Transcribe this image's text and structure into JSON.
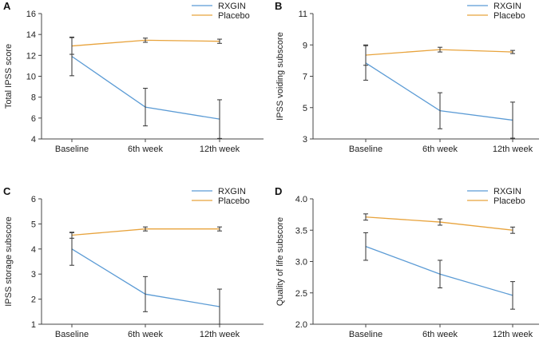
{
  "colors": {
    "rxgin": "#5B9BD5",
    "placebo": "#E8A33C",
    "error": "#333333"
  },
  "chart_data": [
    {
      "panel": "A",
      "type": "line",
      "categories": [
        "Baseline",
        "6th week",
        "12th week"
      ],
      "ylabel": "Total IPSS score",
      "ylim": [
        4,
        16
      ],
      "yticks": [
        4,
        6,
        8,
        10,
        12,
        14,
        16
      ],
      "legend": [
        "RXGIN",
        "Placebo"
      ],
      "series": [
        {
          "name": "RXGIN",
          "values": [
            11.9,
            7.05,
            5.9
          ],
          "errors": [
            1.85,
            1.8,
            1.85
          ]
        },
        {
          "name": "Placebo",
          "values": [
            12.9,
            13.45,
            13.35
          ],
          "errors": [
            0.8,
            0.2,
            0.2
          ]
        }
      ]
    },
    {
      "panel": "B",
      "type": "line",
      "categories": [
        "Baseline",
        "6th week",
        "12th week"
      ],
      "ylabel": "IPSS voiding subscore",
      "ylim": [
        3,
        11
      ],
      "yticks": [
        3,
        5,
        7,
        9,
        11
      ],
      "legend": [
        "RXGIN",
        "Placebo"
      ],
      "series": [
        {
          "name": "RXGIN",
          "values": [
            7.85,
            4.8,
            4.2
          ],
          "errors": [
            1.1,
            1.15,
            1.15
          ]
        },
        {
          "name": "Placebo",
          "values": [
            8.35,
            8.7,
            8.55
          ],
          "errors": [
            0.65,
            0.15,
            0.1
          ]
        }
      ]
    },
    {
      "panel": "C",
      "type": "line",
      "categories": [
        "Baseline",
        "6th week",
        "12th week"
      ],
      "ylabel": "IPSS storage subscore",
      "ylim": [
        1,
        6
      ],
      "yticks": [
        1,
        2,
        3,
        4,
        5,
        6
      ],
      "legend": [
        "RXGIN",
        "Placebo"
      ],
      "series": [
        {
          "name": "RXGIN",
          "values": [
            4.0,
            2.2,
            1.7
          ],
          "errors": [
            0.65,
            0.7,
            0.7
          ]
        },
        {
          "name": "Placebo",
          "values": [
            4.55,
            4.8,
            4.8
          ],
          "errors": [
            0.12,
            0.08,
            0.08
          ]
        }
      ]
    },
    {
      "panel": "D",
      "type": "line",
      "categories": [
        "Baseline",
        "6th week",
        "12th week"
      ],
      "ylabel": "Quality of life subscore",
      "ylim": [
        2.0,
        4.0
      ],
      "yticks": [
        2.0,
        2.5,
        3.0,
        3.5,
        4.0
      ],
      "yformat": 1,
      "legend": [
        "RXGIN",
        "Placebo"
      ],
      "series": [
        {
          "name": "RXGIN",
          "values": [
            3.24,
            2.8,
            2.46
          ],
          "errors": [
            0.22,
            0.22,
            0.22
          ]
        },
        {
          "name": "Placebo",
          "values": [
            3.71,
            3.63,
            3.5
          ],
          "errors": [
            0.05,
            0.05,
            0.05
          ]
        }
      ]
    }
  ]
}
